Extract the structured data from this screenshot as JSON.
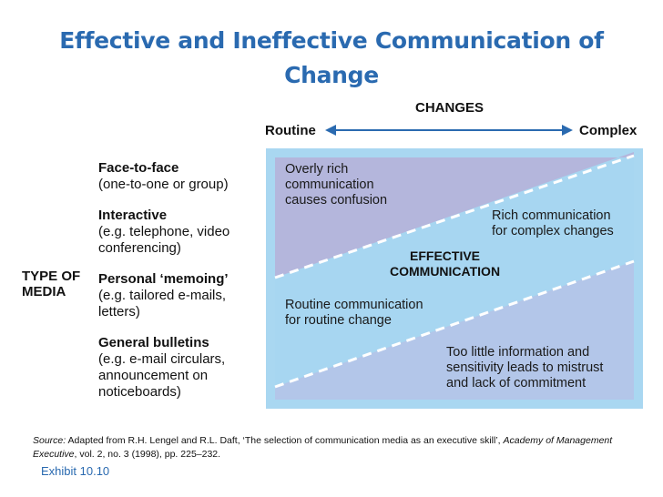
{
  "title": "Effective and Ineffective Communication of Change",
  "changes": {
    "label": "CHANGES",
    "left": "Routine",
    "right": "Complex"
  },
  "media": {
    "axis_label_line1": "TYPE OF",
    "axis_label_line2": "MEDIA",
    "items": [
      {
        "title": "Face-to-face",
        "desc": [
          "(one-to-one or group)"
        ]
      },
      {
        "title": "Interactive",
        "desc": [
          "(e.g. telephone, video",
          "conferencing)"
        ]
      },
      {
        "title": "Personal ‘memoing’",
        "desc": [
          "(e.g. tailored e-mails,",
          "letters)"
        ]
      },
      {
        "title": "General bulletins",
        "desc": [
          "(e.g. e-mail circulars,",
          "announcement on",
          "noticeboards)"
        ]
      }
    ]
  },
  "zones": {
    "rich_confusion": [
      "Overly rich",
      "communication",
      "causes confusion"
    ],
    "rich_complex": [
      "Rich communication",
      "for complex changes"
    ],
    "effective": [
      "EFFECTIVE",
      "COMMUNICATION"
    ],
    "routine": [
      "Routine communication",
      "for routine change"
    ],
    "too_little": [
      "Too little information and",
      "sensitivity leads to mistrust",
      "and lack of commitment"
    ]
  },
  "colors": {
    "title": "#2a6ab0",
    "frame": "#a9d7f1",
    "upper_zone": "#b4b6dc",
    "middle_zone": "#a7d6f1",
    "lower_zone": "#b3c6e9",
    "dash": "#ffffff",
    "arrow": "#2a6ab0"
  },
  "source": {
    "label": "Source:",
    "text1": " Adapted from R.H. Lengel and R.L. Daft, ‘The selection of communication media as an executive skill’, ",
    "journal": "Academy of Management Executive",
    "text2": ", vol. 2, no. 3 (1998), pp. 225–232."
  },
  "exhibit": "Exhibit 10.10"
}
